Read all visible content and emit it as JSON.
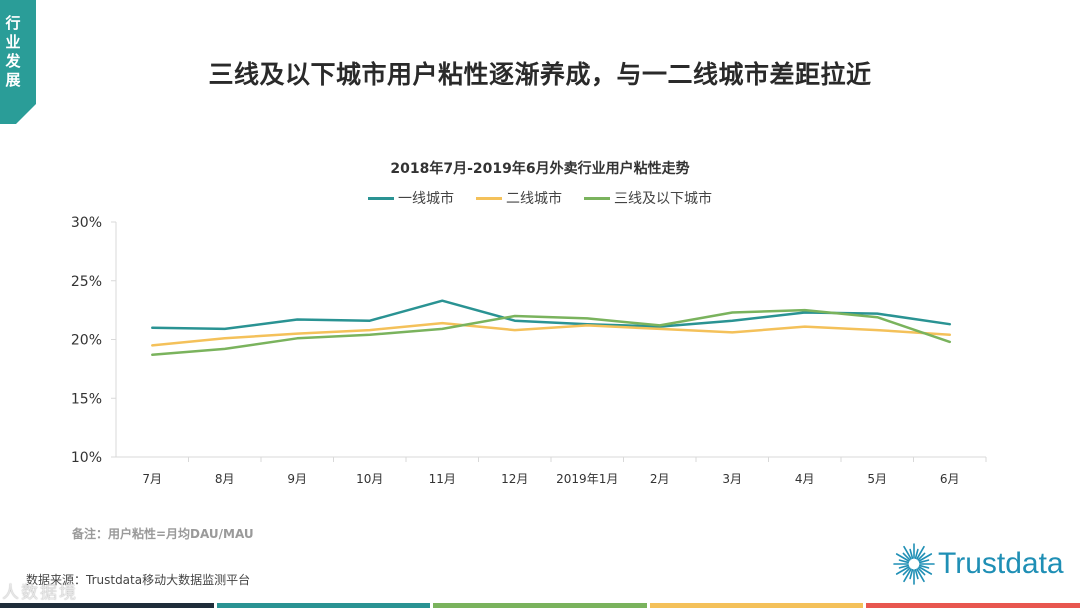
{
  "side_tab": {
    "text": "行业发展",
    "color": "#2a9d98"
  },
  "slide_title": "三线及以下城市用户粘性逐渐养成，与一二线城市差距拉近",
  "chart_data": {
    "type": "line",
    "title": "2018年7月-2019年6月外卖行业用户粘性走势",
    "categories": [
      "7月",
      "8月",
      "9月",
      "10月",
      "11月",
      "12月",
      "2019年1月",
      "2月",
      "3月",
      "4月",
      "5月",
      "6月"
    ],
    "y_ticks": [
      "10%",
      "15%",
      "20%",
      "25%",
      "30%"
    ],
    "ylim": [
      10,
      30
    ],
    "series": [
      {
        "name": "一线城市",
        "color": "#2a9393",
        "values": [
          21.0,
          20.9,
          21.7,
          21.6,
          23.3,
          21.6,
          21.3,
          21.1,
          21.6,
          22.3,
          22.2,
          21.3
        ]
      },
      {
        "name": "二线城市",
        "color": "#f4c15a",
        "values": [
          19.5,
          20.1,
          20.5,
          20.8,
          21.4,
          20.8,
          21.2,
          20.9,
          20.6,
          21.1,
          20.8,
          20.4
        ]
      },
      {
        "name": "三线及以下城市",
        "color": "#7ab35d",
        "values": [
          18.7,
          19.2,
          20.1,
          20.4,
          20.9,
          22.0,
          21.8,
          21.2,
          22.3,
          22.5,
          21.9,
          19.8
        ]
      }
    ]
  },
  "note": "备注：用户粘性=月均DAU/MAU",
  "source": "数据来源：Trustdata移动大数据监测平台",
  "watermark": "人数据境",
  "brand": {
    "text": "Trustdata",
    "color": "#1f8fb5"
  },
  "footer_colors": [
    "#1f2d3a",
    "#2a9393",
    "#7ab35d",
    "#f4c15a",
    "#e8564f"
  ]
}
